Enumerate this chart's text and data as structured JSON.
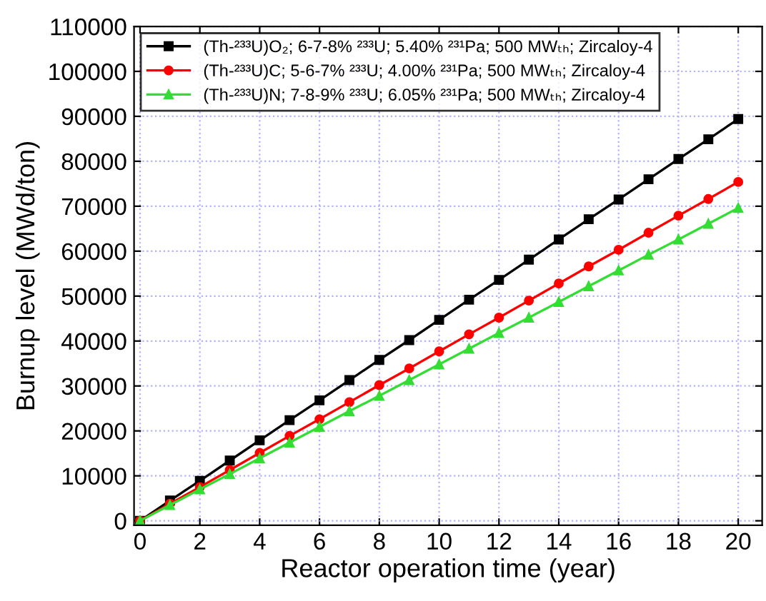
{
  "chart_data": {
    "type": "line",
    "xlabel": "Reactor operation time (year)",
    "ylabel": "Burnup level (MWd/ton)",
    "x": [
      0,
      1,
      2,
      3,
      4,
      5,
      6,
      7,
      8,
      9,
      10,
      11,
      12,
      13,
      14,
      15,
      16,
      17,
      18,
      19,
      20
    ],
    "series": [
      {
        "name": "(Th-²³³U)O₂; 6-7-8% ²³³U; 5.40% ²³¹Pa; 500 MWₜₕ; Zircaloy-4",
        "color": "#000000",
        "marker": "square",
        "values": [
          0,
          4500,
          8900,
          13400,
          17900,
          22400,
          26800,
          31300,
          35800,
          40200,
          44700,
          49200,
          53600,
          58100,
          62600,
          67100,
          71500,
          76000,
          80500,
          84900,
          89400
        ]
      },
      {
        "name": "(Th-²³³U)C; 5-6-7% ²³³U; 4.00% ²³¹Pa; 500 MWₜₕ; Zircaloy-4",
        "color": "#ff0000",
        "marker": "circle",
        "values": [
          0,
          3800,
          7500,
          11300,
          15100,
          18900,
          22600,
          26400,
          30200,
          33900,
          37700,
          41500,
          45200,
          49000,
          52800,
          56600,
          60300,
          64100,
          67900,
          71600,
          75400
        ]
      },
      {
        "name": "(Th-²³³U)N; 7-8-9% ²³³U; 6.05% ²³¹Pa; 500 MWₜₕ; Zircaloy-4",
        "color": "#33dd33",
        "marker": "triangle",
        "values": [
          0,
          3500,
          7000,
          10400,
          13900,
          17400,
          20900,
          24400,
          27800,
          31300,
          34800,
          38300,
          41800,
          45200,
          48700,
          52200,
          55700,
          59200,
          62600,
          66100,
          69600
        ]
      }
    ],
    "xlim": [
      -0.2,
      20.8
    ],
    "xticks": [
      0,
      2,
      4,
      6,
      8,
      10,
      12,
      14,
      16,
      18,
      20
    ],
    "ylim": [
      -1000,
      110000
    ],
    "yticks": [
      0,
      10000,
      20000,
      30000,
      40000,
      50000,
      60000,
      70000,
      80000,
      90000,
      100000,
      110000
    ],
    "grid": true,
    "legend": "top left",
    "line_style": "solid"
  }
}
